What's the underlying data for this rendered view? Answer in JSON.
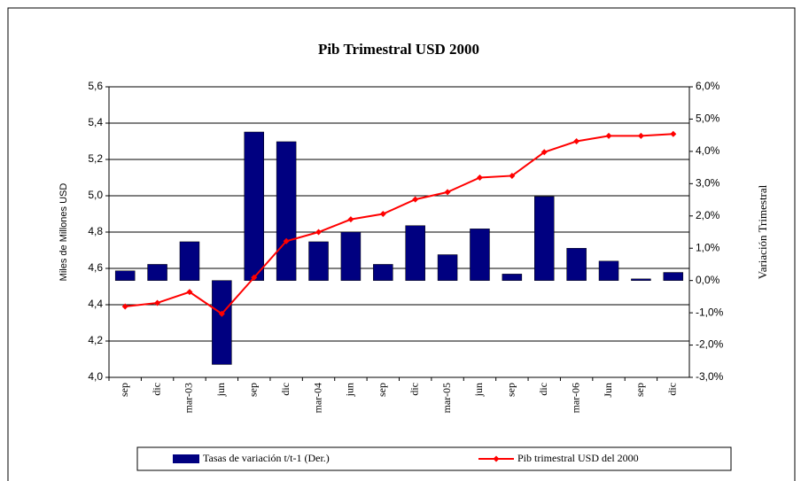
{
  "chart_data": {
    "type": "bar_line",
    "title": "Pib Trimestral USD 2000",
    "ylabel": "Miles de Millones USD",
    "y2label": "Variación Trimestral",
    "categories": [
      "sep",
      "dic",
      "mar-03",
      "jun",
      "sep",
      "dic",
      "mar-04",
      "jun",
      "sep",
      "dic",
      "mar-05",
      "jun",
      "sep",
      "dic",
      "mar-06",
      "Jun",
      "sep",
      "dic"
    ],
    "series": [
      {
        "name": "Tasas de variación t/t-1 (Der.)",
        "type": "bar",
        "axis": "y2",
        "color": "#000080",
        "values": [
          0.3,
          0.5,
          1.2,
          -2.6,
          4.6,
          4.3,
          1.2,
          1.5,
          0.5,
          1.7,
          0.8,
          1.6,
          0.2,
          2.6,
          1.0,
          0.6,
          0.05,
          0.25
        ]
      },
      {
        "name": "Pib trimestral USD del 2000",
        "type": "line",
        "axis": "y",
        "color": "#ff0000",
        "values": [
          4.39,
          4.41,
          4.47,
          4.35,
          4.55,
          4.75,
          4.8,
          4.87,
          4.9,
          4.98,
          5.02,
          5.1,
          5.11,
          5.24,
          5.3,
          5.33,
          5.33,
          5.34
        ]
      }
    ],
    "ylim": [
      4.0,
      5.6
    ],
    "yticks": [
      {
        "value": 4.0,
        "label": "4,0"
      },
      {
        "value": 4.2,
        "label": "4,2"
      },
      {
        "value": 4.4,
        "label": "4,4"
      },
      {
        "value": 4.6,
        "label": "4,6"
      },
      {
        "value": 4.8,
        "label": "4,8"
      },
      {
        "value": 5.0,
        "label": "5,0"
      },
      {
        "value": 5.2,
        "label": "5,2"
      },
      {
        "value": 5.4,
        "label": "5,4"
      },
      {
        "value": 5.6,
        "label": "5,6"
      }
    ],
    "y2lim": [
      -3,
      6
    ],
    "y2ticks": [
      {
        "value": -3,
        "label": "-3,0%"
      },
      {
        "value": -2,
        "label": "-2,0%"
      },
      {
        "value": -1,
        "label": "-1,0%"
      },
      {
        "value": 0,
        "label": "0,0%"
      },
      {
        "value": 1,
        "label": "1,0%"
      },
      {
        "value": 2,
        "label": "2,0%"
      },
      {
        "value": 3,
        "label": "3,0%"
      },
      {
        "value": 4,
        "label": "4,0%"
      },
      {
        "value": 5,
        "label": "5,0%"
      },
      {
        "value": 6,
        "label": "6,0%"
      }
    ],
    "grid": true,
    "legend": "bottom"
  }
}
